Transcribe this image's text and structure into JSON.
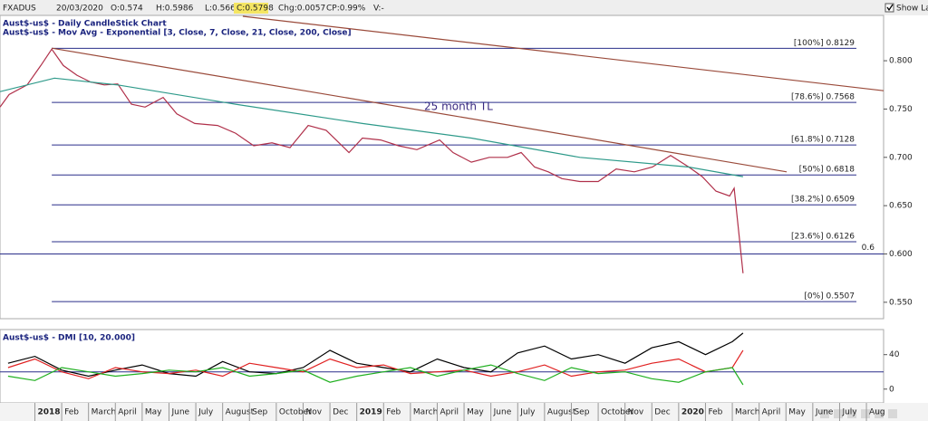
{
  "header": {
    "symbol": "FXADUS",
    "date": "20/03/2020",
    "open": "O:0.574",
    "high": "H:0.5986",
    "low": "L:0.5662",
    "close": "C:0.5798",
    "change": "Chg:0.0057",
    "change_pct": "CP:0.99%",
    "volume": "V:-",
    "show_last": "Show Last"
  },
  "chart_data": [
    {
      "type": "line",
      "title": "Aust$-us$ - Daily CandleStick Chart",
      "subtitle": "Aust$-us$ - Mov Avg - Exponential [3, Close, 7, Close, 21, Close, 200, Close]",
      "xlim": [
        -1.3,
        31.64
      ],
      "ylim": [
        0.533,
        0.846
      ],
      "xticks": [
        {
          "value": 0,
          "label": "2018"
        },
        {
          "value": 1,
          "label": "Feb"
        },
        {
          "value": 2,
          "label": "March"
        },
        {
          "value": 3,
          "label": "April"
        },
        {
          "value": 4,
          "label": "May"
        },
        {
          "value": 5,
          "label": "June"
        },
        {
          "value": 6,
          "label": "July"
        },
        {
          "value": 7,
          "label": "August"
        },
        {
          "value": 8,
          "label": "Sep"
        },
        {
          "value": 9,
          "label": "October"
        },
        {
          "value": 10,
          "label": "Nov"
        },
        {
          "value": 11,
          "label": "Dec"
        },
        {
          "value": 12,
          "label": "2019"
        },
        {
          "value": 13,
          "label": "Feb"
        },
        {
          "value": 14,
          "label": "March"
        },
        {
          "value": 15,
          "label": "April"
        },
        {
          "value": 16,
          "label": "May"
        },
        {
          "value": 17,
          "label": "June"
        },
        {
          "value": 18,
          "label": "July"
        },
        {
          "value": 19,
          "label": "August"
        },
        {
          "value": 20,
          "label": "Sep"
        },
        {
          "value": 21,
          "label": "October"
        },
        {
          "value": 22,
          "label": "Nov"
        },
        {
          "value": 23,
          "label": "Dec"
        },
        {
          "value": 24,
          "label": "2020"
        },
        {
          "value": 25,
          "label": "Feb"
        },
        {
          "value": 26,
          "label": "March"
        },
        {
          "value": 27,
          "label": "April"
        },
        {
          "value": 28,
          "label": "May"
        },
        {
          "value": 29,
          "label": "June"
        },
        {
          "value": 30,
          "label": "July"
        },
        {
          "value": 31,
          "label": "Aug"
        }
      ],
      "yticks": [
        {
          "value": 0.55,
          "label": "0.550"
        },
        {
          "value": 0.6,
          "label": "0.600"
        },
        {
          "value": 0.65,
          "label": "0.650"
        },
        {
          "value": 0.7,
          "label": "0.700"
        },
        {
          "value": 0.75,
          "label": "0.750"
        },
        {
          "value": 0.8,
          "label": "0.800"
        }
      ],
      "series": [
        {
          "color": "#b0304a",
          "x": [
            -1.3,
            -0.96,
            -0.29,
            0.22,
            0.63,
            1.06,
            1.57,
            2.08,
            2.59,
            3.09,
            3.6,
            4.11,
            4.78,
            5.29,
            5.96,
            6.81,
            7.48,
            8.16,
            8.84,
            9.51,
            10.19,
            10.86,
            11.71,
            12.21,
            12.89,
            13.56,
            14.24,
            15.09,
            15.59,
            16.27,
            16.94,
            17.62,
            18.13,
            18.63,
            19.14,
            19.65,
            20.32,
            21.0,
            21.67,
            22.35,
            23.02,
            23.7,
            24.38,
            24.88,
            25.39,
            25.9,
            26.07,
            26.23,
            26.4
          ],
          "values": [
            0.752,
            0.765,
            0.775,
            0.795,
            0.812,
            0.795,
            0.785,
            0.778,
            0.775,
            0.776,
            0.755,
            0.752,
            0.762,
            0.745,
            0.735,
            0.733,
            0.725,
            0.712,
            0.715,
            0.71,
            0.733,
            0.728,
            0.705,
            0.72,
            0.718,
            0.712,
            0.708,
            0.718,
            0.705,
            0.695,
            0.7,
            0.7,
            0.705,
            0.69,
            0.685,
            0.678,
            0.675,
            0.675,
            0.688,
            0.685,
            0.69,
            0.702,
            0.69,
            0.68,
            0.665,
            0.66,
            0.668,
            0.625,
            0.58
          ]
        },
        {
          "color": "#2e9a8a",
          "x": [
            -1.3,
            0.73,
            3.09,
            7.48,
            12.21,
            16.27,
            20.32,
            24.38,
            26.4
          ],
          "values": [
            0.768,
            0.782,
            0.775,
            0.755,
            0.735,
            0.72,
            0.7,
            0.69,
            0.68
          ]
        }
      ],
      "trendlines": [
        {
          "color": "#9a4a3a",
          "x": [
            0.63,
            28.03
          ],
          "values": [
            0.813,
            0.685
          ]
        },
        {
          "color": "#9a4a3a",
          "x": [
            7.75,
            31.64
          ],
          "values": [
            0.846,
            0.769
          ]
        }
      ],
      "annotation": "25 month TL",
      "levels": [
        {
          "value": 0.8129,
          "label": "[100%] 0.8129"
        },
        {
          "value": 0.7568,
          "label": "[78.6%] 0.7568"
        },
        {
          "value": 0.7128,
          "label": "[61.8%] 0.7128"
        },
        {
          "value": 0.6818,
          "label": "[50%] 0.6818"
        },
        {
          "value": 0.6509,
          "label": "[38.2%] 0.6509"
        },
        {
          "value": 0.6126,
          "label": "[23.6%] 0.6126"
        },
        {
          "value": 0.5507,
          "label": "[0%] 0.5507"
        }
      ],
      "hlines": [
        0.6
      ]
    },
    {
      "type": "line",
      "title": "Aust$-us$ - DMI [10, 20.000]",
      "xlim": [
        -1.3,
        31.64
      ],
      "ylim": [
        -16,
        67
      ],
      "yticks": [
        0,
        40
      ],
      "hlines": [
        20
      ],
      "series": [
        {
          "color": "#000000",
          "x": [
            -1,
            0,
            1,
            2,
            3,
            4,
            5,
            6,
            7,
            8,
            9,
            10,
            11,
            12,
            13,
            14,
            15,
            16,
            17,
            18,
            19,
            20,
            21,
            22,
            23,
            24,
            25,
            26,
            26.4
          ],
          "values": [
            30,
            38,
            22,
            15,
            22,
            28,
            18,
            15,
            32,
            20,
            18,
            25,
            45,
            30,
            25,
            20,
            35,
            25,
            20,
            42,
            50,
            35,
            40,
            30,
            48,
            55,
            40,
            55,
            65
          ]
        },
        {
          "color": "#e02020",
          "x": [
            -1,
            0,
            1,
            2,
            3,
            4,
            5,
            6,
            7,
            8,
            9,
            10,
            11,
            12,
            13,
            14,
            15,
            16,
            17,
            18,
            19,
            20,
            21,
            22,
            23,
            24,
            25,
            26,
            26.4
          ],
          "values": [
            25,
            35,
            20,
            12,
            25,
            20,
            18,
            22,
            15,
            30,
            25,
            20,
            35,
            25,
            28,
            18,
            20,
            22,
            15,
            20,
            28,
            15,
            20,
            22,
            30,
            35,
            20,
            25,
            45
          ]
        },
        {
          "color": "#20b020",
          "x": [
            -1,
            0,
            1,
            2,
            3,
            4,
            5,
            6,
            7,
            8,
            9,
            10,
            11,
            12,
            13,
            14,
            15,
            16,
            17,
            18,
            19,
            20,
            21,
            22,
            23,
            24,
            25,
            26,
            26.4
          ],
          "values": [
            15,
            10,
            25,
            20,
            15,
            18,
            22,
            20,
            25,
            15,
            18,
            22,
            8,
            15,
            20,
            25,
            15,
            22,
            28,
            18,
            10,
            25,
            18,
            20,
            12,
            8,
            20,
            25,
            5
          ]
        }
      ]
    }
  ]
}
